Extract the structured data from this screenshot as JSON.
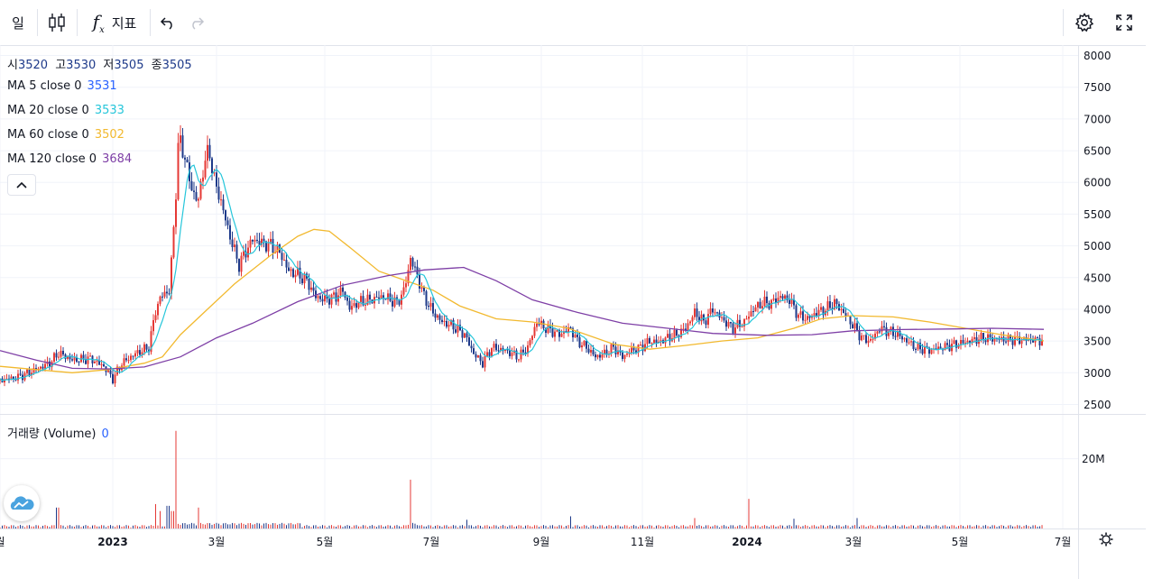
{
  "toolbar": {
    "interval": "일",
    "indicators_label": "지표",
    "chart_type_icon": "candles-icon",
    "indicators_icon": "fx-icon",
    "undo_icon": "undo-icon",
    "redo_icon": "redo-icon",
    "settings_icon": "gear-icon",
    "fullscreen_icon": "fullscreen-icon"
  },
  "ohlc": {
    "open_label": "시",
    "open": "3520",
    "high_label": "고",
    "high": "3530",
    "low_label": "저",
    "low": "3505",
    "close_label": "종",
    "close": "3505"
  },
  "indicators": [
    {
      "label": "MA 5 close 0",
      "value": "3531",
      "color": "#2962ff"
    },
    {
      "label": "MA 20 close 0",
      "value": "3533",
      "color": "#26c6da"
    },
    {
      "label": "MA 60 close 0",
      "value": "3502",
      "color": "#f2b92f"
    },
    {
      "label": "MA 120 close 0",
      "value": "3684",
      "color": "#7e3fa6"
    }
  ],
  "volume_legend": {
    "label": "거래량 (Volume)",
    "value": "0"
  },
  "colors": {
    "up": "#e53935",
    "down": "#1e3a8a",
    "grid": "#f0f3fa",
    "axis_text": "#131722"
  },
  "chart_data": {
    "type": "candlestick",
    "y_ticks": [
      "8000",
      "7500",
      "7000",
      "6500",
      "6000",
      "5500",
      "5000",
      "4500",
      "4000",
      "3500",
      "3000",
      "2500"
    ],
    "ylim": [
      2350,
      8150
    ],
    "volume_ticks": [
      "20M"
    ],
    "volume_max": 30000000,
    "x_ticks": [
      {
        "t": 0,
        "label": "월"
      },
      {
        "t": 125,
        "label": "2023"
      },
      {
        "t": 240,
        "label": "3월"
      },
      {
        "t": 360,
        "label": "5월"
      },
      {
        "t": 478,
        "label": "7월"
      },
      {
        "t": 600,
        "label": "9월"
      },
      {
        "t": 712,
        "label": "11월"
      },
      {
        "t": 828,
        "label": "2024"
      },
      {
        "t": 946,
        "label": "3월"
      },
      {
        "t": 1064,
        "label": "5월"
      },
      {
        "t": 1178,
        "label": "7월"
      }
    ],
    "close_anchors": [
      [
        0,
        2880
      ],
      [
        20,
        2930
      ],
      [
        40,
        3050
      ],
      [
        55,
        3150
      ],
      [
        65,
        3310
      ],
      [
        80,
        3200
      ],
      [
        100,
        3220
      ],
      [
        115,
        3100
      ],
      [
        125,
        2900
      ],
      [
        135,
        3150
      ],
      [
        150,
        3300
      ],
      [
        165,
        3400
      ],
      [
        172,
        3950
      ],
      [
        178,
        4200
      ],
      [
        188,
        4300
      ],
      [
        194,
        5600
      ],
      [
        198,
        6700
      ],
      [
        205,
        6400
      ],
      [
        212,
        5900
      ],
      [
        220,
        5700
      ],
      [
        226,
        6300
      ],
      [
        232,
        6500
      ],
      [
        238,
        6000
      ],
      [
        245,
        5700
      ],
      [
        252,
        5300
      ],
      [
        258,
        5000
      ],
      [
        265,
        4700
      ],
      [
        272,
        4900
      ],
      [
        280,
        5100
      ],
      [
        290,
        5050
      ],
      [
        300,
        5000
      ],
      [
        310,
        4900
      ],
      [
        320,
        4600
      ],
      [
        330,
        4550
      ],
      [
        340,
        4450
      ],
      [
        350,
        4200
      ],
      [
        360,
        4150
      ],
      [
        372,
        4200
      ],
      [
        380,
        4300
      ],
      [
        388,
        4000
      ],
      [
        395,
        4100
      ],
      [
        410,
        4150
      ],
      [
        425,
        4200
      ],
      [
        440,
        4100
      ],
      [
        448,
        4300
      ],
      [
        455,
        4800
      ],
      [
        462,
        4550
      ],
      [
        470,
        4200
      ],
      [
        480,
        3950
      ],
      [
        490,
        3800
      ],
      [
        500,
        3750
      ],
      [
        515,
        3600
      ],
      [
        525,
        3300
      ],
      [
        535,
        3150
      ],
      [
        545,
        3400
      ],
      [
        560,
        3350
      ],
      [
        575,
        3250
      ],
      [
        585,
        3400
      ],
      [
        595,
        3800
      ],
      [
        605,
        3700
      ],
      [
        620,
        3600
      ],
      [
        632,
        3700
      ],
      [
        640,
        3500
      ],
      [
        650,
        3400
      ],
      [
        660,
        3250
      ],
      [
        670,
        3300
      ],
      [
        680,
        3400
      ],
      [
        690,
        3250
      ],
      [
        700,
        3350
      ],
      [
        710,
        3400
      ],
      [
        720,
        3500
      ],
      [
        730,
        3480
      ],
      [
        740,
        3550
      ],
      [
        750,
        3600
      ],
      [
        760,
        3700
      ],
      [
        770,
        3950
      ],
      [
        780,
        3800
      ],
      [
        790,
        4000
      ],
      [
        800,
        3850
      ],
      [
        812,
        3700
      ],
      [
        825,
        3800
      ],
      [
        835,
        4000
      ],
      [
        845,
        4100
      ],
      [
        855,
        4100
      ],
      [
        865,
        4200
      ],
      [
        875,
        4150
      ],
      [
        885,
        3900
      ],
      [
        895,
        3850
      ],
      [
        905,
        3950
      ],
      [
        915,
        4000
      ],
      [
        925,
        4100
      ],
      [
        935,
        3950
      ],
      [
        945,
        3750
      ],
      [
        955,
        3550
      ],
      [
        965,
        3500
      ],
      [
        975,
        3700
      ],
      [
        985,
        3650
      ],
      [
        995,
        3600
      ],
      [
        1005,
        3500
      ],
      [
        1015,
        3400
      ],
      [
        1030,
        3350
      ],
      [
        1045,
        3400
      ],
      [
        1060,
        3450
      ],
      [
        1075,
        3500
      ],
      [
        1090,
        3550
      ],
      [
        1105,
        3530
      ],
      [
        1120,
        3520
      ],
      [
        1140,
        3520
      ],
      [
        1157,
        3505
      ]
    ],
    "ma_lines": [
      {
        "name": "MA 60 close 0",
        "color": "#f2b92f",
        "points": [
          [
            0,
            3100
          ],
          [
            40,
            3050
          ],
          [
            80,
            3000
          ],
          [
            120,
            3050
          ],
          [
            160,
            3150
          ],
          [
            180,
            3250
          ],
          [
            200,
            3600
          ],
          [
            230,
            4000
          ],
          [
            260,
            4400
          ],
          [
            300,
            4850
          ],
          [
            330,
            5150
          ],
          [
            348,
            5260
          ],
          [
            365,
            5230
          ],
          [
            390,
            4950
          ],
          [
            420,
            4600
          ],
          [
            450,
            4450
          ],
          [
            480,
            4300
          ],
          [
            510,
            4050
          ],
          [
            550,
            3850
          ],
          [
            590,
            3800
          ],
          [
            630,
            3700
          ],
          [
            680,
            3450
          ],
          [
            720,
            3370
          ],
          [
            760,
            3430
          ],
          [
            800,
            3500
          ],
          [
            840,
            3550
          ],
          [
            880,
            3700
          ],
          [
            910,
            3850
          ],
          [
            945,
            3900
          ],
          [
            990,
            3880
          ],
          [
            1030,
            3800
          ],
          [
            1070,
            3700
          ],
          [
            1110,
            3600
          ],
          [
            1157,
            3502
          ]
        ]
      },
      {
        "name": "MA 120 close 0",
        "color": "#7e3fa6",
        "points": [
          [
            0,
            3350
          ],
          [
            40,
            3200
          ],
          [
            80,
            3070
          ],
          [
            120,
            3060
          ],
          [
            160,
            3090
          ],
          [
            200,
            3250
          ],
          [
            240,
            3550
          ],
          [
            280,
            3780
          ],
          [
            330,
            4120
          ],
          [
            380,
            4380
          ],
          [
            430,
            4530
          ],
          [
            470,
            4620
          ],
          [
            514,
            4660
          ],
          [
            550,
            4450
          ],
          [
            590,
            4150
          ],
          [
            640,
            3950
          ],
          [
            690,
            3780
          ],
          [
            740,
            3700
          ],
          [
            790,
            3620
          ],
          [
            850,
            3590
          ],
          [
            900,
            3600
          ],
          [
            945,
            3660
          ],
          [
            1000,
            3680
          ],
          [
            1060,
            3690
          ],
          [
            1100,
            3700
          ],
          [
            1157,
            3684
          ]
        ]
      }
    ],
    "volume_spikes": [
      [
        64,
        6000000
      ],
      [
        172,
        7000000
      ],
      [
        177,
        5000000
      ],
      [
        186,
        6500000
      ],
      [
        191,
        5000000
      ],
      [
        195,
        28000000
      ],
      [
        220,
        6000000
      ],
      [
        455,
        14000000
      ],
      [
        518,
        2500000
      ],
      [
        632,
        3500000
      ],
      [
        770,
        3000000
      ],
      [
        830,
        8500000
      ],
      [
        880,
        2800000
      ],
      [
        950,
        3000000
      ]
    ]
  }
}
